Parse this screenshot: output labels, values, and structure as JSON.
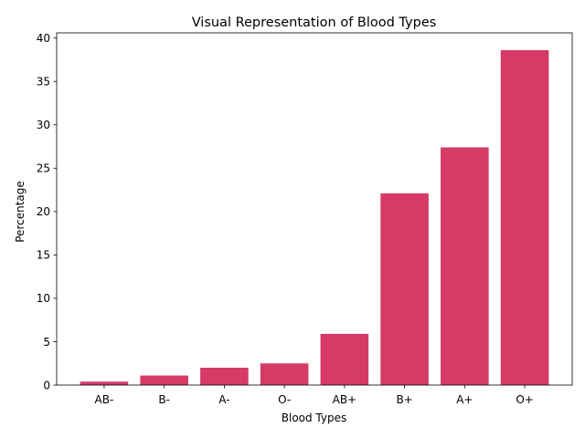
{
  "chart_data": {
    "type": "bar",
    "title": "Visual Representation of Blood Types",
    "xlabel": "Blood Types",
    "ylabel": "Percentage",
    "categories": [
      "AB-",
      "B-",
      "A-",
      "O-",
      "AB+",
      "B+",
      "A+",
      "O+"
    ],
    "values": [
      0.4,
      1.1,
      2.0,
      2.5,
      5.9,
      22.1,
      27.4,
      38.6
    ],
    "ylim": [
      0,
      40.6
    ],
    "yticks": [
      "0",
      "5",
      "10",
      "15",
      "20",
      "25",
      "30",
      "35",
      "40"
    ],
    "grid": false,
    "bar_color": "#d63a67"
  }
}
